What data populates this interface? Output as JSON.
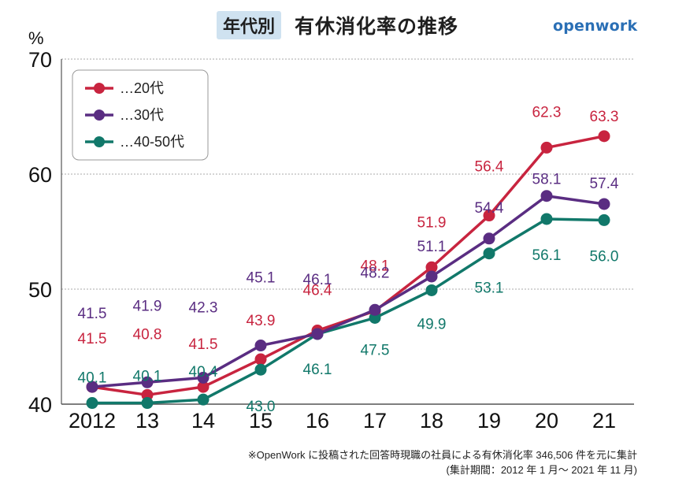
{
  "header": {
    "badge": "年代別",
    "title": "有休消化率の推移",
    "logo": "openwork"
  },
  "footnote": {
    "line1": "※OpenWork に投稿された回答時現職の社員による有休消化率 346,506 件を元に集計",
    "line2": "(集計期間：2012 年 1 月〜 2021 年 11 月)"
  },
  "chart_data": {
    "type": "line",
    "title": "年代別 有休消化率の推移",
    "xlabel": "",
    "ylabel": "%",
    "categories": [
      "2012",
      "13",
      "14",
      "15",
      "16",
      "17",
      "18",
      "19",
      "20",
      "21"
    ],
    "ylim": [
      40,
      70
    ],
    "yticks": [
      40,
      50,
      60,
      70
    ],
    "grid": "horizontal dotted",
    "legend_position": "top-left",
    "series": [
      {
        "name": "…20代",
        "color": "#c8243f",
        "values": [
          41.5,
          40.8,
          41.5,
          43.9,
          46.4,
          48.1,
          51.9,
          56.4,
          62.3,
          63.3
        ]
      },
      {
        "name": "…30代",
        "color": "#5a2d82",
        "values": [
          41.5,
          41.9,
          42.3,
          45.1,
          46.1,
          48.2,
          51.1,
          54.4,
          58.1,
          57.4
        ]
      },
      {
        "name": "…40-50代",
        "color": "#11786a",
        "values": [
          40.1,
          40.1,
          40.4,
          43.0,
          46.1,
          47.5,
          49.9,
          53.1,
          56.1,
          56.0
        ]
      }
    ]
  }
}
